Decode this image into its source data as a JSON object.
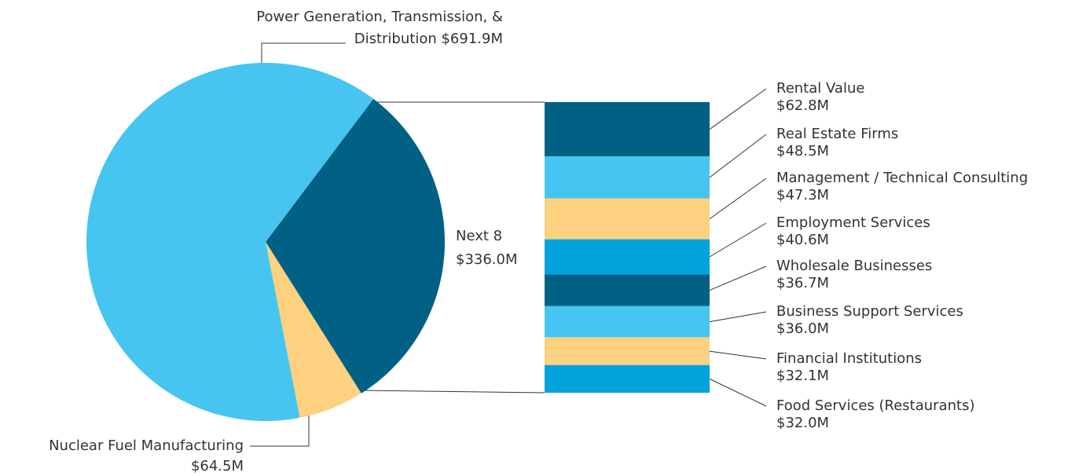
{
  "chart_data": [
    {
      "type": "pie",
      "categories": [
        "Power Generation, Transmission, & Distribution",
        "Nuclear Fuel Manufacturing",
        "Next 8"
      ],
      "values": [
        691.9,
        64.5,
        336.0
      ],
      "value_labels": [
        "$691.9M",
        "$64.5M",
        "$336.0M"
      ],
      "colors": [
        "#45c5f0",
        "#fdd17f",
        "#006185"
      ]
    },
    {
      "type": "bar",
      "categories": [
        "Rental Value",
        "Real Estate Firms",
        "Management / Technical Consulting",
        "Employment Services",
        "Wholesale Businesses",
        "Business Support Services",
        "Financial Institutions",
        "Food Services (Restaurants)"
      ],
      "values": [
        62.8,
        48.5,
        47.3,
        40.6,
        36.7,
        36.0,
        32.1,
        32.0
      ],
      "value_labels": [
        "$62.8M",
        "$48.5M",
        "$47.3M",
        "$40.6M",
        "$36.7M",
        "$36.0M",
        "$32.1M",
        "$32.0M"
      ],
      "colors": [
        "#006185",
        "#45c5f0",
        "#fdd17f",
        "#00a3dc",
        "#006185",
        "#45c5f0",
        "#fdd17f",
        "#00a3dc"
      ]
    }
  ]
}
